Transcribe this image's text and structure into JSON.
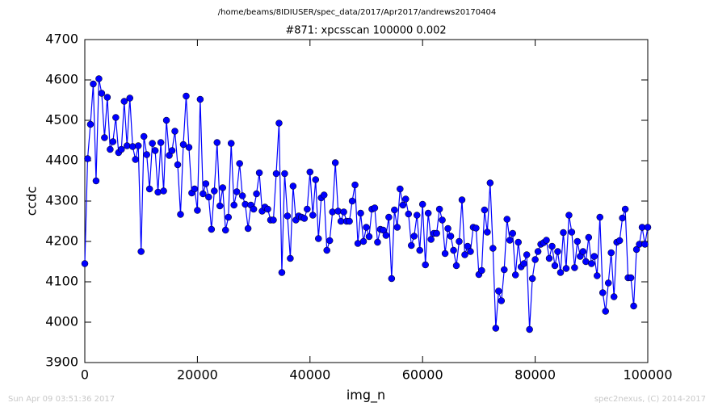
{
  "chart_data": {
    "type": "line",
    "suptitle": "/home/beams/8IDIUSER/spec_data/2017/Apr2017/andrews20170404",
    "title": "#871: xpcsscan 100000 0.002",
    "x_label": "img_n",
    "y_label": "ccdc",
    "footer_left": "Sun Apr 09 03:51:36 2017",
    "footer_right": "spec2nexus, (C) 2014-2017",
    "xlim": [
      0,
      100000
    ],
    "xticks": [
      0,
      20000,
      40000,
      60000,
      80000,
      100000
    ],
    "ylim": [
      3900,
      4700
    ],
    "yticks": [
      3900,
      4000,
      4100,
      4200,
      4300,
      4400,
      4500,
      4600,
      4700
    ],
    "grid": false,
    "x": [
      0,
      500,
      1000,
      1500,
      2000,
      2500,
      3000,
      3500,
      4000,
      4500,
      5000,
      5500,
      6000,
      6500,
      7000,
      7500,
      8000,
      8500,
      9000,
      9500,
      10000,
      10500,
      11000,
      11500,
      12000,
      12500,
      13000,
      13500,
      14000,
      14500,
      15000,
      15500,
      16000,
      16500,
      17000,
      17500,
      18000,
      18500,
      19000,
      19500,
      20000,
      20500,
      21000,
      21500,
      22000,
      22500,
      23000,
      23500,
      24000,
      24500,
      25000,
      25500,
      26000,
      26500,
      27000,
      27500,
      28000,
      28500,
      29000,
      29500,
      30000,
      30500,
      31000,
      31500,
      32000,
      32500,
      33000,
      33500,
      34000,
      34500,
      35000,
      35500,
      36000,
      36500,
      37000,
      37500,
      38000,
      38500,
      39000,
      39500,
      40000,
      40500,
      41000,
      41500,
      42000,
      42500,
      43000,
      43500,
      44000,
      44500,
      45000,
      45500,
      46000,
      46500,
      47000,
      47500,
      48000,
      48500,
      49000,
      49500,
      50000,
      50500,
      51000,
      51500,
      52000,
      52500,
      53000,
      53500,
      54000,
      54500,
      55000,
      55500,
      56000,
      56500,
      57000,
      57500,
      58000,
      58500,
      59000,
      59500,
      60000,
      60500,
      61000,
      61500,
      62000,
      62500,
      63000,
      63500,
      64000,
      64500,
      65000,
      65500,
      66000,
      66500,
      67000,
      67500,
      68000,
      68500,
      69000,
      69500,
      70000,
      70500,
      71000,
      71500,
      72000,
      72500,
      73000,
      73500,
      74000,
      74500,
      75000,
      75500,
      76000,
      76500,
      77000,
      77500,
      78000,
      78500,
      79000,
      79500,
      80000,
      80500,
      81000,
      81500,
      82000,
      82500,
      83000,
      83500,
      84000,
      84500,
      85000,
      85500,
      86000,
      86500,
      87000,
      87500,
      88000,
      88500,
      89000,
      89500,
      90000,
      90500,
      91000,
      91500,
      92000,
      92500,
      93000,
      93500,
      94000,
      94500,
      95000,
      95500,
      96000,
      96500,
      97000,
      97500,
      98000,
      98500,
      99000,
      99500,
      100000
    ],
    "series": [
      {
        "color": "#0000ff",
        "values": [
          4145,
          4405,
          4490,
          4590,
          4350,
          4603,
          4567,
          4457,
          4557,
          4428,
          4447,
          4507,
          4420,
          4428,
          4547,
          4437,
          4555,
          4435,
          4403,
          4437,
          4175,
          4460,
          4415,
          4330,
          4443,
          4425,
          4322,
          4445,
          4325,
          4500,
          4413,
          4425,
          4473,
          4390,
          4267,
          4440,
          4560,
          4433,
          4320,
          4330,
          4277,
          4552,
          4318,
          4343,
          4310,
          4230,
          4325,
          4445,
          4288,
          4333,
          4228,
          4260,
          4443,
          4290,
          4323,
          4393,
          4313,
          4292,
          4232,
          4290,
          4280,
          4318,
          4370,
          4275,
          4285,
          4280,
          4253,
          4253,
          4368,
          4493,
          4123,
          4368,
          4263,
          4158,
          4337,
          4253,
          4263,
          4260,
          4257,
          4280,
          4372,
          4265,
          4353,
          4207,
          4308,
          4315,
          4178,
          4202,
          4273,
          4395,
          4275,
          4250,
          4273,
          4250,
          4250,
          4300,
          4340,
          4195,
          4270,
          4200,
          4235,
          4212,
          4280,
          4283,
          4198,
          4230,
          4228,
          4215,
          4260,
          4108,
          4278,
          4235,
          4330,
          4290,
          4305,
          4268,
          4190,
          4213,
          4265,
          4178,
          4292,
          4142,
          4270,
          4205,
          4220,
          4220,
          4280,
          4253,
          4170,
          4232,
          4213,
          4178,
          4140,
          4200,
          4303,
          4167,
          4188,
          4175,
          4235,
          4233,
          4118,
          4128,
          4278,
          4223,
          4345,
          4183,
          3985,
          4077,
          4053,
          4130,
          4255,
          4203,
          4220,
          4117,
          4198,
          4137,
          4145,
          4167,
          3982,
          4108,
          4155,
          4175,
          4193,
          4197,
          4203,
          4158,
          4188,
          4140,
          4175,
          4123,
          4222,
          4133,
          4265,
          4223,
          4135,
          4200,
          4163,
          4175,
          4150,
          4210,
          4145,
          4163,
          4115,
          4260,
          4073,
          4027,
          4097,
          4172,
          4063,
          4198,
          4202,
          4258,
          4280,
          4110,
          4110,
          4040,
          4180,
          4193,
          4235,
          4193,
          4235
        ]
      }
    ]
  }
}
